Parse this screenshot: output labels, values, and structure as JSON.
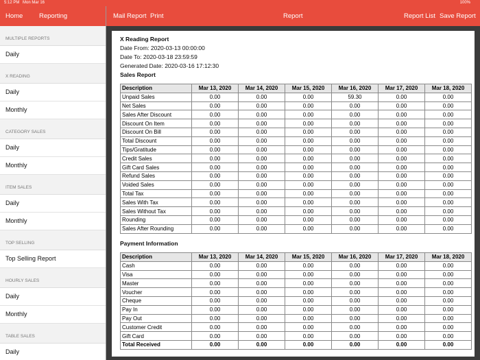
{
  "status_bar": {
    "time": "5:12 PM",
    "date": "Mon Mar 16",
    "battery": "100%"
  },
  "sidebar": {
    "header": {
      "back": "Home",
      "title": "Reporting"
    },
    "sections": [
      {
        "title": "MULTIPLE REPORTS",
        "items": [
          "Daily"
        ]
      },
      {
        "title": "X READING",
        "items": [
          "Daily",
          "Monthly"
        ]
      },
      {
        "title": "CATEGORY SALES",
        "items": [
          "Daily",
          "Monthly"
        ]
      },
      {
        "title": "ITEM SALES",
        "items": [
          "Daily",
          "Monthly"
        ]
      },
      {
        "title": "TOP SELLING",
        "items": [
          "Top Selling Report"
        ]
      },
      {
        "title": "HOURLY SALES",
        "items": [
          "Daily",
          "Monthly"
        ]
      },
      {
        "title": "TABLE SALES",
        "items": [
          "Daily"
        ]
      }
    ]
  },
  "toolbar": {
    "mail": "Mail Report",
    "print": "Print",
    "title": "Report",
    "report_list": "Report List",
    "save": "Save Report"
  },
  "report": {
    "title": "X Reading Report",
    "date_from": "Date From: 2020-03-13 00:00:00",
    "date_to": "Date To: 2020-03-18 23:59:59",
    "generated": "Generated Date: 2020-03-16 17:12:30",
    "sales_heading": "Sales Report",
    "sales_table": {
      "header": [
        "Description",
        "Mar 13, 2020",
        "Mar 14, 2020",
        "Mar 15, 2020",
        "Mar 16, 2020",
        "Mar 17, 2020",
        "Mar 18, 2020"
      ],
      "rows": [
        [
          "Unpaid Sales",
          "0.00",
          "0.00",
          "0.00",
          "59.30",
          "0.00",
          "0.00"
        ],
        [
          "Net Sales",
          "0.00",
          "0.00",
          "0.00",
          "0.00",
          "0.00",
          "0.00"
        ],
        [
          "Sales After Discount",
          "0.00",
          "0.00",
          "0.00",
          "0.00",
          "0.00",
          "0.00"
        ],
        [
          "Discount On Item",
          "0.00",
          "0.00",
          "0.00",
          "0.00",
          "0.00",
          "0.00"
        ],
        [
          "Discount On Bill",
          "0.00",
          "0.00",
          "0.00",
          "0.00",
          "0.00",
          "0.00"
        ],
        [
          "Total Discount",
          "0.00",
          "0.00",
          "0.00",
          "0.00",
          "0.00",
          "0.00"
        ],
        [
          "Tips/Gratitude",
          "0.00",
          "0.00",
          "0.00",
          "0.00",
          "0.00",
          "0.00"
        ],
        [
          "Credit Sales",
          "0.00",
          "0.00",
          "0.00",
          "0.00",
          "0.00",
          "0.00"
        ],
        [
          "Gift Card Sales",
          "0.00",
          "0.00",
          "0.00",
          "0.00",
          "0.00",
          "0.00"
        ],
        [
          "Refund Sales",
          "0.00",
          "0.00",
          "0.00",
          "0.00",
          "0.00",
          "0.00"
        ],
        [
          "Voided Sales",
          "0.00",
          "0.00",
          "0.00",
          "0.00",
          "0.00",
          "0.00"
        ],
        [
          "Total Tax",
          "0.00",
          "0.00",
          "0.00",
          "0.00",
          "0.00",
          "0.00"
        ],
        [
          "Sales With Tax",
          "0.00",
          "0.00",
          "0.00",
          "0.00",
          "0.00",
          "0.00"
        ],
        [
          "Sales Without Tax",
          "0.00",
          "0.00",
          "0.00",
          "0.00",
          "0.00",
          "0.00"
        ],
        [
          "Rounding",
          "0.00",
          "0.00",
          "0.00",
          "0.00",
          "0.00",
          "0.00"
        ],
        [
          "Sales After Rounding",
          "0.00",
          "0.00",
          "0.00",
          "0.00",
          "0.00",
          "0.00"
        ]
      ]
    },
    "payment_heading": "Payment Information",
    "payment_table": {
      "header": [
        "Description",
        "Mar 13, 2020",
        "Mar 14, 2020",
        "Mar 15, 2020",
        "Mar 16, 2020",
        "Mar 17, 2020",
        "Mar 18, 2020"
      ],
      "rows": [
        [
          "Cash",
          "0.00",
          "0.00",
          "0.00",
          "0.00",
          "0.00",
          "0.00"
        ],
        [
          "Visa",
          "0.00",
          "0.00",
          "0.00",
          "0.00",
          "0.00",
          "0.00"
        ],
        [
          "Master",
          "0.00",
          "0.00",
          "0.00",
          "0.00",
          "0.00",
          "0.00"
        ],
        [
          "Voucher",
          "0.00",
          "0.00",
          "0.00",
          "0.00",
          "0.00",
          "0.00"
        ],
        [
          "Cheque",
          "0.00",
          "0.00",
          "0.00",
          "0.00",
          "0.00",
          "0.00"
        ],
        [
          "Pay In",
          "0.00",
          "0.00",
          "0.00",
          "0.00",
          "0.00",
          "0.00"
        ],
        [
          "Pay Out",
          "0.00",
          "0.00",
          "0.00",
          "0.00",
          "0.00",
          "0.00"
        ],
        [
          "Customer Credit",
          "0.00",
          "0.00",
          "0.00",
          "0.00",
          "0.00",
          "0.00"
        ],
        [
          "Gift Card",
          "0.00",
          "0.00",
          "0.00",
          "0.00",
          "0.00",
          "0.00"
        ]
      ],
      "total": [
        "Total Received",
        "0.00",
        "0.00",
        "0.00",
        "0.00",
        "0.00",
        "0.00"
      ]
    }
  }
}
